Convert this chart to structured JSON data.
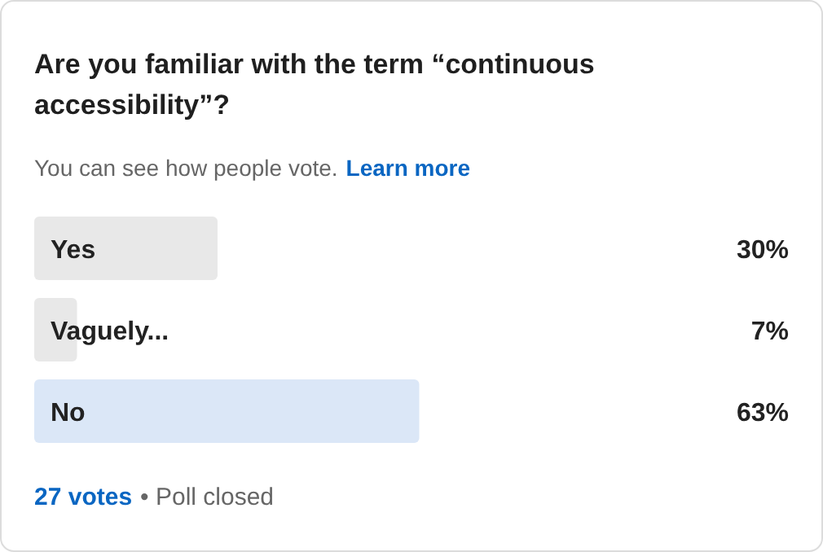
{
  "chart_data": {
    "type": "bar",
    "orientation": "horizontal",
    "title": "Are you familiar with the term “continuous accessibility”?",
    "subtitle": "You can see how people vote.",
    "categories": [
      "Yes",
      "Vaguely...",
      "No"
    ],
    "values": [
      30,
      7,
      63
    ],
    "colors": [
      "#e8e8e8",
      "#e8e8e8",
      "#dbe7f7"
    ],
    "value_labels": [
      "30%",
      "7%",
      "63%"
    ],
    "annotations": [
      "Learn more",
      "27 votes",
      "• Poll closed"
    ]
  }
}
